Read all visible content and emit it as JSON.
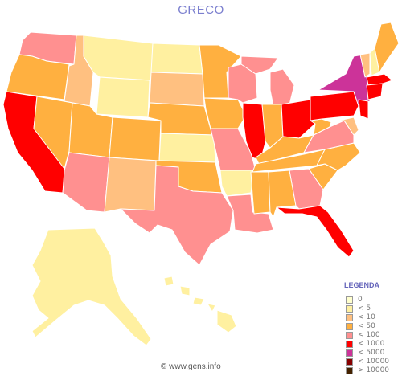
{
  "title": "GRECO",
  "legend": {
    "title": "LEGENDA",
    "items": [
      {
        "label": "0",
        "color": "#ffffcc"
      },
      {
        "label": "< 5",
        "color": "#fff0a0"
      },
      {
        "label": "< 10",
        "color": "#ffc080"
      },
      {
        "label": "< 50",
        "color": "#ffb040"
      },
      {
        "label": "< 100",
        "color": "#ff9090"
      },
      {
        "label": "< 1000",
        "color": "#ff0000"
      },
      {
        "label": "< 5000",
        "color": "#cc3399"
      },
      {
        "label": "< 10000",
        "color": "#880000"
      },
      {
        "label": "> 10000",
        "color": "#442200"
      }
    ]
  },
  "footer": "© www.gens.info",
  "colors": {
    "c0": "#ffffcc",
    "c5": "#fff0a0",
    "c10": "#ffc080",
    "c50": "#ffb040",
    "c100": "#ff9090",
    "c1000": "#ff0000",
    "c5000": "#cc3399"
  }
}
